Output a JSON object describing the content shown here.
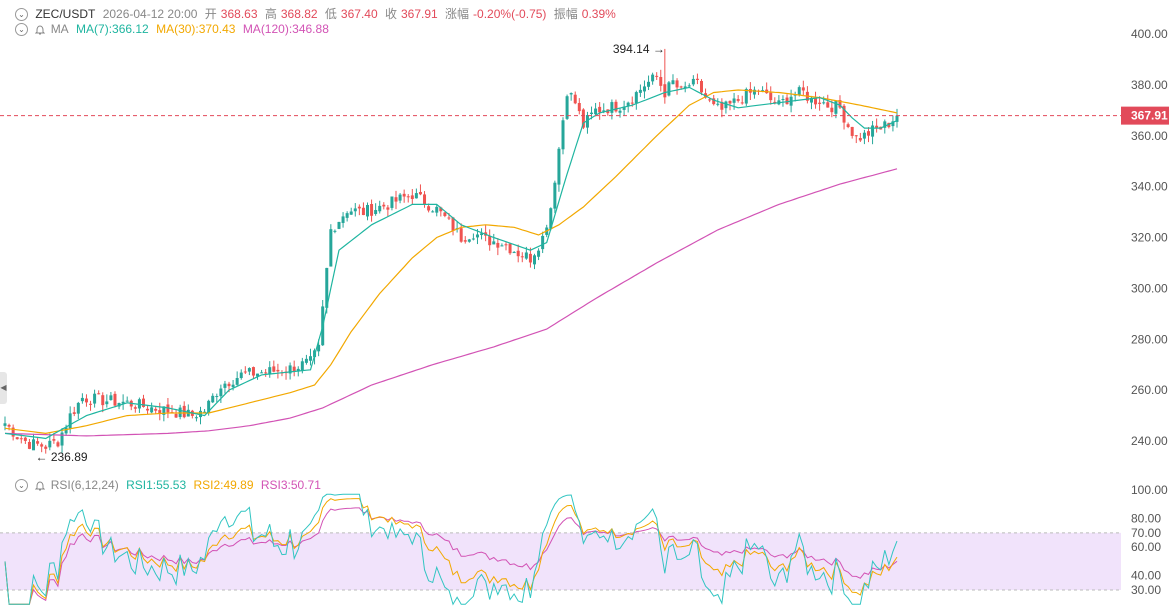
{
  "header": {
    "symbol": "ZEC/USDT",
    "datetime": "2026-04-12 20:00",
    "open_label": "开",
    "open": "368.63",
    "high_label": "高",
    "high": "368.82",
    "low_label": "低",
    "low": "367.40",
    "close_label": "收",
    "close": "367.91",
    "change_label": "涨幅",
    "change": "-0.20%(-0.75)",
    "amplitude_label": "振幅",
    "amplitude": "0.39%"
  },
  "ma_legend": {
    "label": "MA",
    "ma7": "MA(7):366.12",
    "ma30": "MA(30):370.43",
    "ma120": "MA(120):346.88"
  },
  "rsi_legend": {
    "label": "RSI(6,12,24)",
    "rsi1": "RSI1:55.53",
    "rsi2": "RSI2:49.89",
    "rsi3": "RSI3:50.71"
  },
  "colors": {
    "up": "#26a69a",
    "down": "#ef5350",
    "ma7": "#1fb5a0",
    "ma30": "#f2a800",
    "ma120": "#d253b5",
    "rsi1": "#31c5c2",
    "rsi2": "#f2a800",
    "rsi3": "#d253b5",
    "rsi_band": "#f1e3fb",
    "price_line": "#e24a5a"
  },
  "chart_data": [
    {
      "type": "candlestick",
      "name": "price",
      "y_ticks": [
        "400.00",
        "380.00",
        "360.00",
        "340.00",
        "320.00",
        "300.00",
        "280.00",
        "260.00",
        "240.00"
      ],
      "ylim": [
        231,
        402
      ],
      "last_price": "367.91",
      "high_marker": "394.14",
      "low_marker": "236.89",
      "anchors": [
        [
          0,
          247
        ],
        [
          3,
          242
        ],
        [
          6,
          239
        ],
        [
          10,
          238
        ],
        [
          13,
          240
        ],
        [
          16,
          250
        ],
        [
          19,
          257
        ],
        [
          24,
          256
        ],
        [
          30,
          255
        ],
        [
          36,
          253
        ],
        [
          40,
          252
        ],
        [
          46,
          250
        ],
        [
          49,
          252
        ],
        [
          53,
          262
        ],
        [
          58,
          266
        ],
        [
          63,
          267
        ],
        [
          69,
          268
        ],
        [
          75,
          271
        ],
        [
          77,
          276
        ],
        [
          80,
          323
        ],
        [
          84,
          331
        ],
        [
          88,
          330
        ],
        [
          94,
          333
        ],
        [
          97,
          335
        ],
        [
          100,
          337
        ],
        [
          103,
          334
        ],
        [
          106,
          331
        ],
        [
          109,
          326
        ],
        [
          112,
          320
        ],
        [
          115,
          322
        ],
        [
          118,
          319
        ],
        [
          122,
          318
        ],
        [
          126,
          314
        ],
        [
          129,
          312
        ],
        [
          132,
          320
        ],
        [
          134,
          332
        ],
        [
          136,
          355
        ],
        [
          138,
          378
        ],
        [
          140,
          373
        ],
        [
          142,
          364
        ],
        [
          145,
          370
        ],
        [
          148,
          371
        ],
        [
          151,
          372
        ],
        [
          154,
          375
        ],
        [
          157,
          380
        ],
        [
          160,
          383
        ],
        [
          162,
          377
        ],
        [
          164,
          381
        ],
        [
          166,
          377
        ],
        [
          168,
          380
        ],
        [
          170,
          380
        ],
        [
          172,
          375
        ],
        [
          174,
          371
        ],
        [
          176,
          370
        ],
        [
          179,
          373
        ],
        [
          182,
          376
        ],
        [
          185,
          378
        ],
        [
          188,
          374
        ],
        [
          190,
          372
        ],
        [
          193,
          376
        ],
        [
          196,
          377
        ],
        [
          198,
          374
        ],
        [
          200,
          374
        ],
        [
          202,
          372
        ],
        [
          205,
          371
        ],
        [
          207,
          364
        ],
        [
          209,
          359
        ],
        [
          211,
          360
        ],
        [
          213,
          362
        ],
        [
          215,
          363
        ],
        [
          217,
          365
        ],
        [
          219,
          367.9
        ]
      ],
      "ma7_anchors": [
        [
          0,
          243
        ],
        [
          10,
          241
        ],
        [
          20,
          250
        ],
        [
          30,
          255
        ],
        [
          40,
          253
        ],
        [
          49,
          250
        ],
        [
          55,
          260
        ],
        [
          63,
          266
        ],
        [
          75,
          268
        ],
        [
          78,
          285
        ],
        [
          82,
          315
        ],
        [
          90,
          325
        ],
        [
          100,
          333
        ],
        [
          106,
          333
        ],
        [
          112,
          325
        ],
        [
          120,
          320
        ],
        [
          129,
          315
        ],
        [
          133,
          318
        ],
        [
          138,
          345
        ],
        [
          142,
          365
        ],
        [
          146,
          369
        ],
        [
          154,
          372
        ],
        [
          162,
          377
        ],
        [
          168,
          379
        ],
        [
          174,
          374
        ],
        [
          180,
          371
        ],
        [
          190,
          373
        ],
        [
          200,
          375
        ],
        [
          205,
          372
        ],
        [
          208,
          367
        ],
        [
          211,
          363
        ],
        [
          215,
          363
        ],
        [
          219,
          366
        ]
      ],
      "ma30_anchors": [
        [
          0,
          245
        ],
        [
          10,
          243
        ],
        [
          20,
          246
        ],
        [
          30,
          250
        ],
        [
          40,
          251
        ],
        [
          50,
          251
        ],
        [
          60,
          255
        ],
        [
          70,
          259
        ],
        [
          76,
          262
        ],
        [
          80,
          270
        ],
        [
          85,
          283
        ],
        [
          92,
          298
        ],
        [
          100,
          312
        ],
        [
          106,
          320
        ],
        [
          112,
          324
        ],
        [
          118,
          325
        ],
        [
          125,
          324
        ],
        [
          131,
          321
        ],
        [
          136,
          325
        ],
        [
          142,
          332
        ],
        [
          150,
          344
        ],
        [
          160,
          360
        ],
        [
          168,
          372
        ],
        [
          174,
          377
        ],
        [
          180,
          378
        ],
        [
          190,
          377
        ],
        [
          200,
          375
        ],
        [
          210,
          372
        ],
        [
          219,
          369
        ]
      ],
      "ma120_anchors": [
        [
          0,
          243
        ],
        [
          20,
          242
        ],
        [
          40,
          243
        ],
        [
          50,
          244
        ],
        [
          60,
          246
        ],
        [
          70,
          249
        ],
        [
          78,
          253
        ],
        [
          90,
          262
        ],
        [
          105,
          270
        ],
        [
          120,
          277
        ],
        [
          133,
          284
        ],
        [
          145,
          296
        ],
        [
          160,
          310
        ],
        [
          175,
          323
        ],
        [
          190,
          333
        ],
        [
          205,
          341
        ],
        [
          219,
          347
        ]
      ]
    },
    {
      "type": "line",
      "name": "rsi",
      "y_ticks": [
        "100.00",
        "80.00",
        "70.00",
        "60.00",
        "40.00",
        "30.00"
      ],
      "band": [
        30,
        70
      ],
      "series": [
        "RSI1",
        "RSI2",
        "RSI3"
      ]
    }
  ]
}
